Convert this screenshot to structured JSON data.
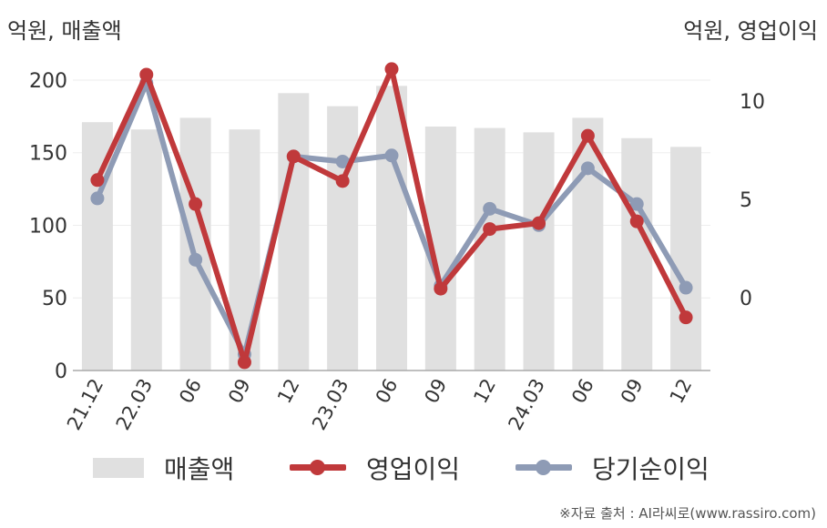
{
  "units": {
    "left": "억원, 매출액",
    "right": "억원, 영업이익"
  },
  "source": "※자료 출처 : AI라씨로(www.rassiro.com)",
  "colors": {
    "bar": "#e0e0e0",
    "operating": "#c0393b",
    "net": "#8e9bb5",
    "grid": "#eeeeee",
    "axis": "#aaaaaa",
    "text": "#333333"
  },
  "chart_data": {
    "type": "bar+line",
    "categories": [
      "21.12",
      "22.03",
      "06",
      "09",
      "12",
      "23.03",
      "06",
      "09",
      "12",
      "24.03",
      "06",
      "09",
      "12"
    ],
    "left_axis": {
      "ylim": [
        0,
        210
      ],
      "ticks": [
        0,
        50,
        100,
        150,
        200
      ]
    },
    "right_axis": {
      "ylim": [
        -3.7,
        11.8
      ],
      "ticks": [
        0,
        5,
        10
      ]
    },
    "series": [
      {
        "name": "매출액",
        "type": "bar",
        "axis": "left",
        "color": "#e0e0e0",
        "values": [
          171,
          166,
          174,
          166,
          191,
          182,
          196,
          168,
          167,
          164,
          174,
          160,
          154
        ]
      },
      {
        "name": "영업이익",
        "type": "line",
        "axis": "right",
        "color": "#c0393b",
        "values": [
          5.98,
          11.34,
          4.76,
          -3.28,
          7.18,
          5.93,
          11.62,
          0.46,
          3.49,
          3.79,
          8.23,
          3.88,
          -1.0
        ]
      },
      {
        "name": "당기순이익",
        "type": "line",
        "axis": "right",
        "color": "#8e9bb5",
        "values": [
          5.05,
          10.91,
          1.93,
          -2.88,
          7.18,
          6.92,
          7.23,
          0.61,
          4.52,
          3.69,
          6.58,
          4.76,
          0.51
        ]
      }
    ],
    "legend_position": "bottom",
    "grid": true
  }
}
